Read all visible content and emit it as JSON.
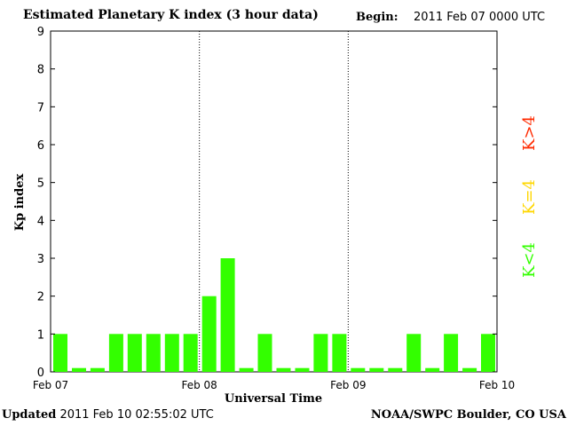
{
  "header": {
    "title": "Estimated Planetary K index (3 hour data)",
    "begin_label": "Begin:",
    "begin_value": "2011 Feb 07 0000 UTC"
  },
  "footer": {
    "updated_label": "Updated",
    "updated_value": "2011 Feb 10 02:55:02 UTC",
    "source": "NOAA/SWPC Boulder, CO USA"
  },
  "legend": [
    {
      "label": "K>4",
      "color": "#ff2a00"
    },
    {
      "label": "K=4",
      "color": "#ffd700"
    },
    {
      "label": "K<4",
      "color": "#33ff00"
    }
  ],
  "chart_data": {
    "type": "bar",
    "title": "Estimated Planetary K index (3 hour data)",
    "xlabel": "Universal Time",
    "ylabel": "Kp index",
    "ylim": [
      0,
      9
    ],
    "yticks": [
      "0",
      "1",
      "2",
      "3",
      "4",
      "5",
      "6",
      "7",
      "8",
      "9"
    ],
    "xticks": [
      "Feb 07",
      "Feb 08",
      "Feb 09",
      "Feb 10"
    ],
    "day_separators": true,
    "bar_color": "#33ff00",
    "series": [
      {
        "values": [
          1,
          0,
          0,
          1,
          1,
          1,
          1,
          1,
          2,
          3,
          0,
          1,
          0,
          0,
          1,
          1,
          0,
          0,
          0,
          1,
          0,
          1,
          0,
          1
        ]
      }
    ]
  }
}
